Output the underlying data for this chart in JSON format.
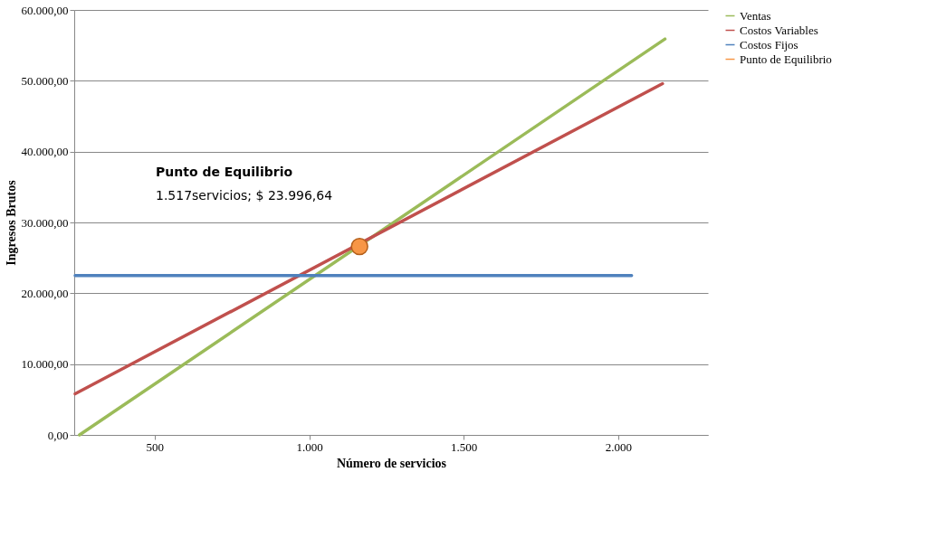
{
  "chart_data": {
    "type": "line",
    "xlabel": "Número de servicios",
    "ylabel": "Ingresos Brutos",
    "xlim": [
      240,
      2290
    ],
    "ylim": [
      0,
      60000
    ],
    "xticks": [
      {
        "value": 500,
        "label": "500"
      },
      {
        "value": 1000,
        "label": "1.000"
      },
      {
        "value": 1500,
        "label": "1.500"
      },
      {
        "value": 2000,
        "label": "2.000"
      }
    ],
    "yticks": [
      {
        "value": 0,
        "label": "0,00"
      },
      {
        "value": 10000,
        "label": "10.000,00"
      },
      {
        "value": 20000,
        "label": "20.000,00"
      },
      {
        "value": 30000,
        "label": "30.000,00"
      },
      {
        "value": 40000,
        "label": "40.000,00"
      },
      {
        "value": 50000,
        "label": "50.000,00"
      },
      {
        "value": 60000,
        "label": "60.000,00"
      }
    ],
    "grid": "y",
    "legend": "right",
    "series": [
      {
        "name": "Ventas",
        "color": "#9bbb59",
        "x": [
          257,
          2151
        ],
        "values": [
          0,
          55900
        ]
      },
      {
        "name": "Costos Variables",
        "color": "#c0504d",
        "x": [
          243,
          2143
        ],
        "values": [
          5800,
          49600
        ]
      },
      {
        "name": "Costos Fijos",
        "color": "#4f81bd",
        "x": [
          243,
          2043
        ],
        "values": [
          22500,
          22500
        ]
      },
      {
        "name": "Punto de Equilibrio",
        "type": "scatter",
        "marker": "circle",
        "color": "#f79646",
        "x": [
          1163
        ],
        "values": [
          26600
        ]
      }
    ],
    "annotations": [
      "Punto de Equilibrio",
      "1.517servicios; $ 23.996,64"
    ]
  }
}
